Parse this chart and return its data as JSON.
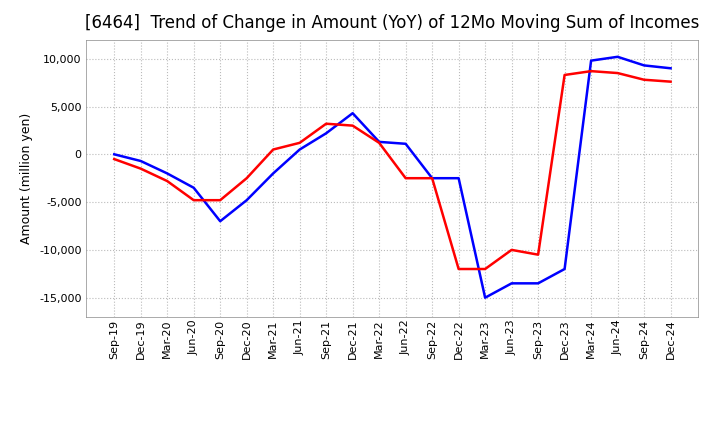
{
  "title": "[6464]  Trend of Change in Amount (YoY) of 12Mo Moving Sum of Incomes",
  "ylabel": "Amount (million yen)",
  "background_color": "#ffffff",
  "grid_color": "#bbbbbb",
  "x_labels": [
    "Sep-19",
    "Dec-19",
    "Mar-20",
    "Jun-20",
    "Sep-20",
    "Dec-20",
    "Mar-21",
    "Jun-21",
    "Sep-21",
    "Dec-21",
    "Mar-22",
    "Jun-22",
    "Sep-22",
    "Dec-22",
    "Mar-23",
    "Jun-23",
    "Sep-23",
    "Dec-23",
    "Mar-24",
    "Jun-24",
    "Sep-24",
    "Dec-24"
  ],
  "ordinary_income": [
    0,
    -700,
    -2000,
    -3500,
    -7000,
    -4800,
    -2000,
    500,
    2200,
    4300,
    1300,
    1100,
    -2500,
    -2500,
    -15000,
    -13500,
    -13500,
    -12000,
    9800,
    10200,
    9300,
    9000
  ],
  "net_income": [
    -500,
    -1500,
    -2800,
    -4800,
    -4800,
    -2500,
    500,
    1200,
    3200,
    3000,
    1200,
    -2500,
    -2500,
    -12000,
    -12000,
    -10000,
    -10500,
    8300,
    8700,
    8500,
    7800,
    7600
  ],
  "ordinary_color": "#0000ff",
  "net_color": "#ff0000",
  "ylim": [
    -17000,
    12000
  ],
  "yticks": [
    -15000,
    -10000,
    -5000,
    0,
    5000,
    10000
  ],
  "line_width": 1.8,
  "title_fontsize": 12,
  "legend_fontsize": 10,
  "tick_fontsize": 8,
  "ylabel_fontsize": 9
}
